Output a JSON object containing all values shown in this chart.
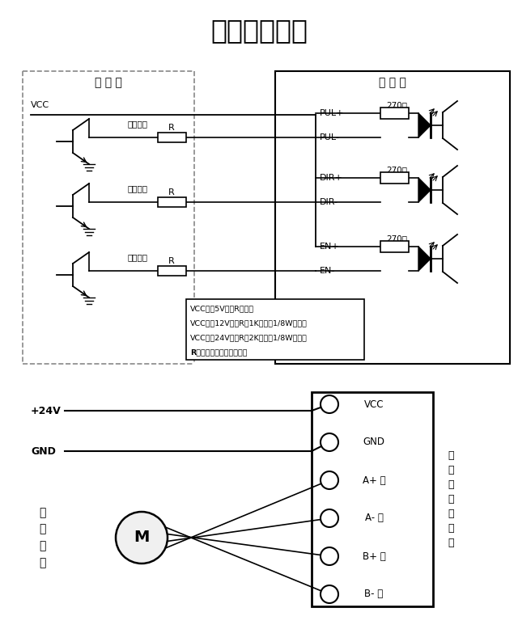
{
  "title": "驱动器接线图",
  "bg_color": "#ffffff",
  "line_color": "#000000",
  "gray_color": "#888888",
  "diagram1": {
    "controller_label": "控 制 器",
    "driver_label": "驱 动 器",
    "vcc_label": "VCC",
    "signals": [
      "脉冲信号",
      "方向信号",
      "使能信号"
    ],
    "plus_labels": [
      "PUL+",
      "DIR+",
      "EN+"
    ],
    "minus_labels": [
      "PUL-",
      "DIR-",
      "EN-"
    ],
    "ohm_label": "270欧",
    "r_label": "R",
    "note_lines": [
      "VCC值为5V时，R短接；",
      "VCC值为12V时，R为1K，大于1/8W电阻；",
      "VCC值为24V时，R为2K，大于1/8W电阻；",
      "R必须接在控制器信号端。"
    ]
  },
  "diagram2": {
    "plus24v_label": "+24V",
    "gnd_label": "GND",
    "motor_label": "步\n进\n电\n机",
    "driver_side_label": "步\n进\n电\n机\n驱\n动\n器",
    "terminals": [
      "VCC",
      "GND",
      "A+ 黑",
      "A- 绿",
      "B+ 红",
      "B- 蓝"
    ]
  }
}
